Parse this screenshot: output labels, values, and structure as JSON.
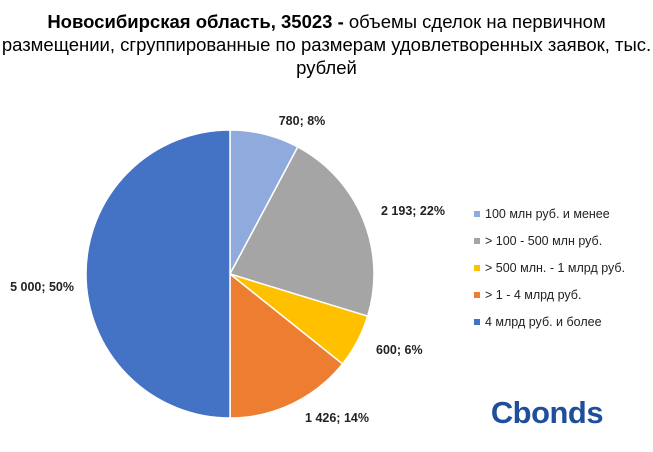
{
  "title_bold": "Новосибирская область, 35023 -",
  "title_rest": "объемы сделок на первичном размещении, сгруппированные по размерам удовлетворенных заявок, тыс. рублей",
  "logo": {
    "text": "Cbonds",
    "color": "#1f4e9c"
  },
  "chart_data": {
    "type": "pie",
    "start_angle_deg": 0,
    "direction": "clockwise",
    "legend_position": "right",
    "slices": [
      {
        "name": "100 млн руб. и менее",
        "value": 780,
        "percent": 8,
        "label": "780; 8%",
        "color": "#8faadc"
      },
      {
        "name": "> 100 - 500 млн руб.",
        "value": 2193,
        "percent": 22,
        "label": "2 193; 22%",
        "color": "#a5a5a5"
      },
      {
        "name": "> 500 млн. - 1 млрд руб.",
        "value": 600,
        "percent": 6,
        "label": "600; 6%",
        "color": "#ffc000"
      },
      {
        "name": "> 1 - 4 млрд руб.",
        "value": 1426,
        "percent": 14,
        "label": "1 426; 14%",
        "color": "#ed7d31"
      },
      {
        "name": "4 млрд руб. и более",
        "value": 5000,
        "percent": 50,
        "label": "5 000; 50%",
        "color": "#4472c4"
      }
    ]
  }
}
